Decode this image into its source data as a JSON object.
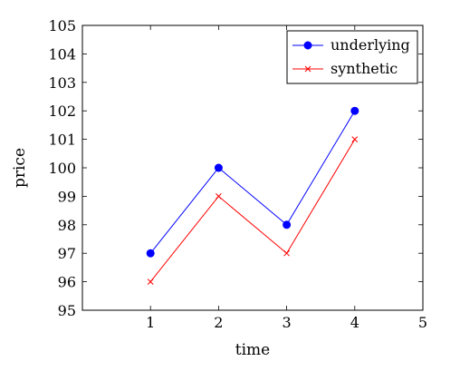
{
  "chart_data": {
    "type": "line",
    "x": [
      1,
      2,
      3,
      4
    ],
    "series": [
      {
        "name": "underlying",
        "values": [
          97,
          100,
          98,
          102
        ],
        "color": "#0000ff",
        "marker": "circle"
      },
      {
        "name": "synthetic",
        "values": [
          96,
          99,
          97,
          101
        ],
        "color": "#ff0000",
        "marker": "x"
      }
    ],
    "xlabel": "time",
    "ylabel": "price",
    "xlim": [
      0,
      5
    ],
    "ylim": [
      95,
      105
    ],
    "xticks": [
      1,
      2,
      3,
      4,
      5
    ],
    "yticks": [
      95,
      96,
      97,
      98,
      99,
      100,
      101,
      102,
      103,
      104,
      105
    ],
    "grid": false,
    "legend_position": "top-right"
  }
}
